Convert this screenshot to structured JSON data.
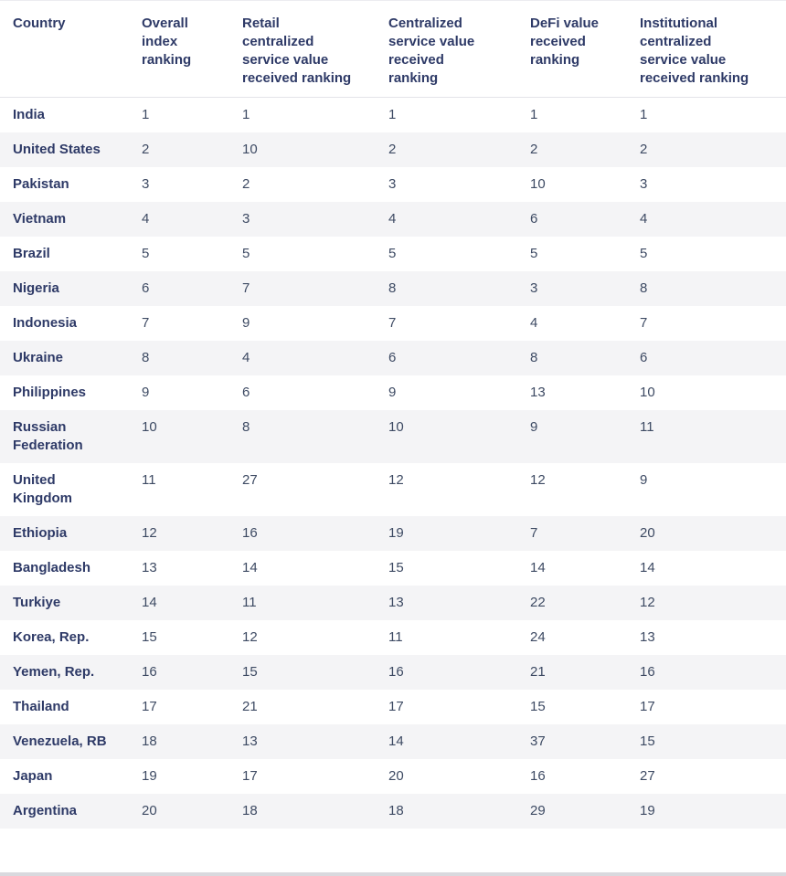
{
  "colors": {
    "header_text": "#2e3a67",
    "cell_text": "#3d4a63",
    "alt_row_bg": "#f4f4f6",
    "background": "#ffffff"
  },
  "chart_data": {
    "type": "table",
    "columns": [
      "Country",
      "Overall index ranking",
      "Retail centralized service value received ranking",
      "Centralized service value received ranking",
      "DeFi value received ranking",
      "Institutional centralized service value received ranking"
    ],
    "rows": [
      [
        "India",
        1,
        1,
        1,
        1,
        1
      ],
      [
        "United States",
        2,
        10,
        2,
        2,
        2
      ],
      [
        "Pakistan",
        3,
        2,
        3,
        10,
        3
      ],
      [
        "Vietnam",
        4,
        3,
        4,
        6,
        4
      ],
      [
        "Brazil",
        5,
        5,
        5,
        5,
        5
      ],
      [
        "Nigeria",
        6,
        7,
        8,
        3,
        8
      ],
      [
        "Indonesia",
        7,
        9,
        7,
        4,
        7
      ],
      [
        "Ukraine",
        8,
        4,
        6,
        8,
        6
      ],
      [
        "Philippines",
        9,
        6,
        9,
        13,
        10
      ],
      [
        "Russian Federation",
        10,
        8,
        10,
        9,
        11
      ],
      [
        "United Kingdom",
        11,
        27,
        12,
        12,
        9
      ],
      [
        "Ethiopia",
        12,
        16,
        19,
        7,
        20
      ],
      [
        "Bangladesh",
        13,
        14,
        15,
        14,
        14
      ],
      [
        "Turkiye",
        14,
        11,
        13,
        22,
        12
      ],
      [
        "Korea, Rep.",
        15,
        12,
        11,
        24,
        13
      ],
      [
        "Yemen, Rep.",
        16,
        15,
        16,
        21,
        16
      ],
      [
        "Thailand",
        17,
        21,
        17,
        15,
        17
      ],
      [
        "Venezuela, RB",
        18,
        13,
        14,
        37,
        15
      ],
      [
        "Japan",
        19,
        17,
        20,
        16,
        27
      ],
      [
        "Argentina",
        20,
        18,
        18,
        29,
        19
      ]
    ]
  }
}
